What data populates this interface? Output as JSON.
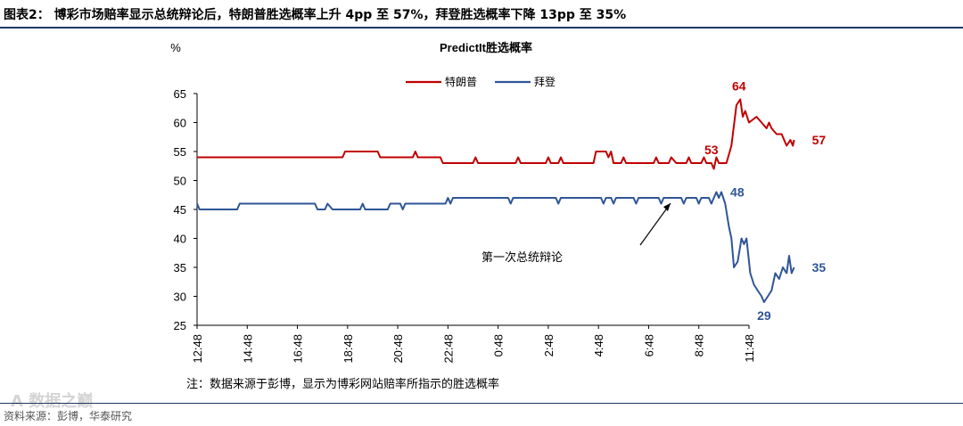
{
  "figure_title": "图表2： 博彩市场赔率显示总统辩论后，特朗普胜选概率上升 4pp 至 57%，拜登胜选概率下降 13pp 至 35%",
  "source": "资料来源：彭博，华泰研究",
  "watermark": "A 数据之巅",
  "colors": {
    "trump": "#c00000",
    "biden": "#2f5597",
    "rule": "#1f3864"
  },
  "chart_data": {
    "type": "line",
    "title": "PredictIt胜选概率",
    "ylabel": "%",
    "ylim": [
      25,
      65
    ],
    "yticks": [
      25,
      30,
      35,
      40,
      45,
      50,
      55,
      60,
      65
    ],
    "xticks": [
      "12:48",
      "14:48",
      "16:48",
      "18:48",
      "20:48",
      "22:48",
      "0:48",
      "2:48",
      "4:48",
      "6:48",
      "8:48",
      "11:48"
    ],
    "legend_position": "top-center",
    "note": "注：数据来源于彭博，显示为博彩网站赔率所指示的胜选概率",
    "annotation": "第一次总统辩论",
    "series": [
      {
        "name": "特朗普",
        "key": "trump",
        "points": [
          [
            0,
            54
          ],
          [
            5.8,
            54
          ],
          [
            5.9,
            55
          ],
          [
            7.2,
            55
          ],
          [
            7.3,
            54
          ],
          [
            8.6,
            54
          ],
          [
            8.7,
            55
          ],
          [
            8.8,
            54
          ],
          [
            9.7,
            54
          ],
          [
            9.8,
            53
          ],
          [
            11,
            53
          ],
          [
            11.1,
            54
          ],
          [
            11.2,
            53
          ],
          [
            12.7,
            53
          ],
          [
            12.8,
            54
          ],
          [
            12.9,
            53
          ],
          [
            13.9,
            53
          ],
          [
            14,
            54
          ],
          [
            14.1,
            53
          ],
          [
            14.4,
            53
          ],
          [
            14.5,
            54
          ],
          [
            14.6,
            53
          ],
          [
            15.8,
            53
          ],
          [
            15.9,
            55
          ],
          [
            16.3,
            55
          ],
          [
            16.4,
            54
          ],
          [
            16.5,
            55
          ],
          [
            16.6,
            53
          ],
          [
            16.9,
            53
          ],
          [
            17,
            54
          ],
          [
            17.1,
            53
          ],
          [
            18.2,
            53
          ],
          [
            18.3,
            54
          ],
          [
            18.4,
            53
          ],
          [
            18.8,
            53
          ],
          [
            18.9,
            54
          ],
          [
            19.1,
            53
          ],
          [
            19.5,
            53
          ],
          [
            19.6,
            54
          ],
          [
            19.7,
            53
          ],
          [
            20.1,
            53
          ],
          [
            20.2,
            54
          ],
          [
            20.3,
            53
          ],
          [
            20.5,
            53
          ],
          [
            20.6,
            52
          ],
          [
            20.7,
            54
          ],
          [
            20.8,
            53
          ],
          [
            21.1,
            53
          ],
          [
            21.3,
            56
          ],
          [
            21.5,
            63
          ],
          [
            21.65,
            64
          ],
          [
            21.75,
            61
          ],
          [
            21.85,
            62
          ],
          [
            22,
            60
          ],
          [
            22.3,
            61
          ],
          [
            22.5,
            60
          ],
          [
            22.7,
            59
          ],
          [
            22.8,
            60
          ],
          [
            22.9,
            59
          ],
          [
            23.1,
            58
          ],
          [
            23.3,
            58
          ],
          [
            23.4,
            57
          ],
          [
            23.5,
            56
          ],
          [
            23.65,
            57
          ],
          [
            23.75,
            56
          ],
          [
            23.8,
            57
          ]
        ]
      },
      {
        "name": "拜登",
        "key": "biden",
        "points": [
          [
            0,
            46
          ],
          [
            0.1,
            45
          ],
          [
            1.6,
            45
          ],
          [
            1.7,
            46
          ],
          [
            4.7,
            46
          ],
          [
            4.8,
            45
          ],
          [
            5.1,
            45
          ],
          [
            5.2,
            46
          ],
          [
            5.4,
            45
          ],
          [
            6.5,
            45
          ],
          [
            6.6,
            46
          ],
          [
            6.7,
            45
          ],
          [
            7.6,
            45
          ],
          [
            7.7,
            46
          ],
          [
            8.1,
            46
          ],
          [
            8.2,
            45
          ],
          [
            8.3,
            46
          ],
          [
            9.9,
            46
          ],
          [
            10,
            47
          ],
          [
            10.1,
            46
          ],
          [
            10.2,
            47
          ],
          [
            12.4,
            47
          ],
          [
            12.5,
            46
          ],
          [
            12.6,
            47
          ],
          [
            14.3,
            47
          ],
          [
            14.4,
            46
          ],
          [
            14.5,
            47
          ],
          [
            16.1,
            47
          ],
          [
            16.2,
            46
          ],
          [
            16.3,
            47
          ],
          [
            16.5,
            47
          ],
          [
            16.6,
            46
          ],
          [
            16.7,
            47
          ],
          [
            17.4,
            47
          ],
          [
            17.5,
            46
          ],
          [
            17.6,
            47
          ],
          [
            18.4,
            47
          ],
          [
            18.5,
            46
          ],
          [
            18.6,
            47
          ],
          [
            19.3,
            47
          ],
          [
            19.4,
            46
          ],
          [
            19.5,
            47
          ],
          [
            19.9,
            47
          ],
          [
            20,
            46
          ],
          [
            20.1,
            47
          ],
          [
            20.4,
            47
          ],
          [
            20.5,
            46
          ],
          [
            20.6,
            47
          ],
          [
            20.7,
            48
          ],
          [
            20.8,
            47
          ],
          [
            20.9,
            48
          ],
          [
            21.05,
            46
          ],
          [
            21.2,
            42
          ],
          [
            21.3,
            40
          ],
          [
            21.4,
            35
          ],
          [
            21.55,
            36
          ],
          [
            21.7,
            40
          ],
          [
            21.8,
            39
          ],
          [
            21.9,
            40
          ],
          [
            22.05,
            34
          ],
          [
            22.2,
            32
          ],
          [
            22.35,
            31
          ],
          [
            22.5,
            30
          ],
          [
            22.6,
            29
          ],
          [
            22.75,
            30
          ],
          [
            22.9,
            31
          ],
          [
            23.05,
            34
          ],
          [
            23.2,
            33
          ],
          [
            23.35,
            35
          ],
          [
            23.5,
            34
          ],
          [
            23.6,
            37
          ],
          [
            23.7,
            34
          ],
          [
            23.8,
            35
          ]
        ]
      }
    ],
    "data_labels": [
      {
        "series": "trump",
        "x": 20.5,
        "y": 53,
        "text": "53"
      },
      {
        "series": "trump",
        "x": 21.6,
        "y": 64,
        "text": "64"
      },
      {
        "series": "trump",
        "x": 23.8,
        "y": 57,
        "text": "57"
      },
      {
        "series": "biden",
        "x": 20.9,
        "y": 48,
        "text": "48"
      },
      {
        "series": "biden",
        "x": 22.6,
        "y": 29,
        "text": "29"
      },
      {
        "series": "biden",
        "x": 23.8,
        "y": 35,
        "text": "35"
      }
    ]
  }
}
